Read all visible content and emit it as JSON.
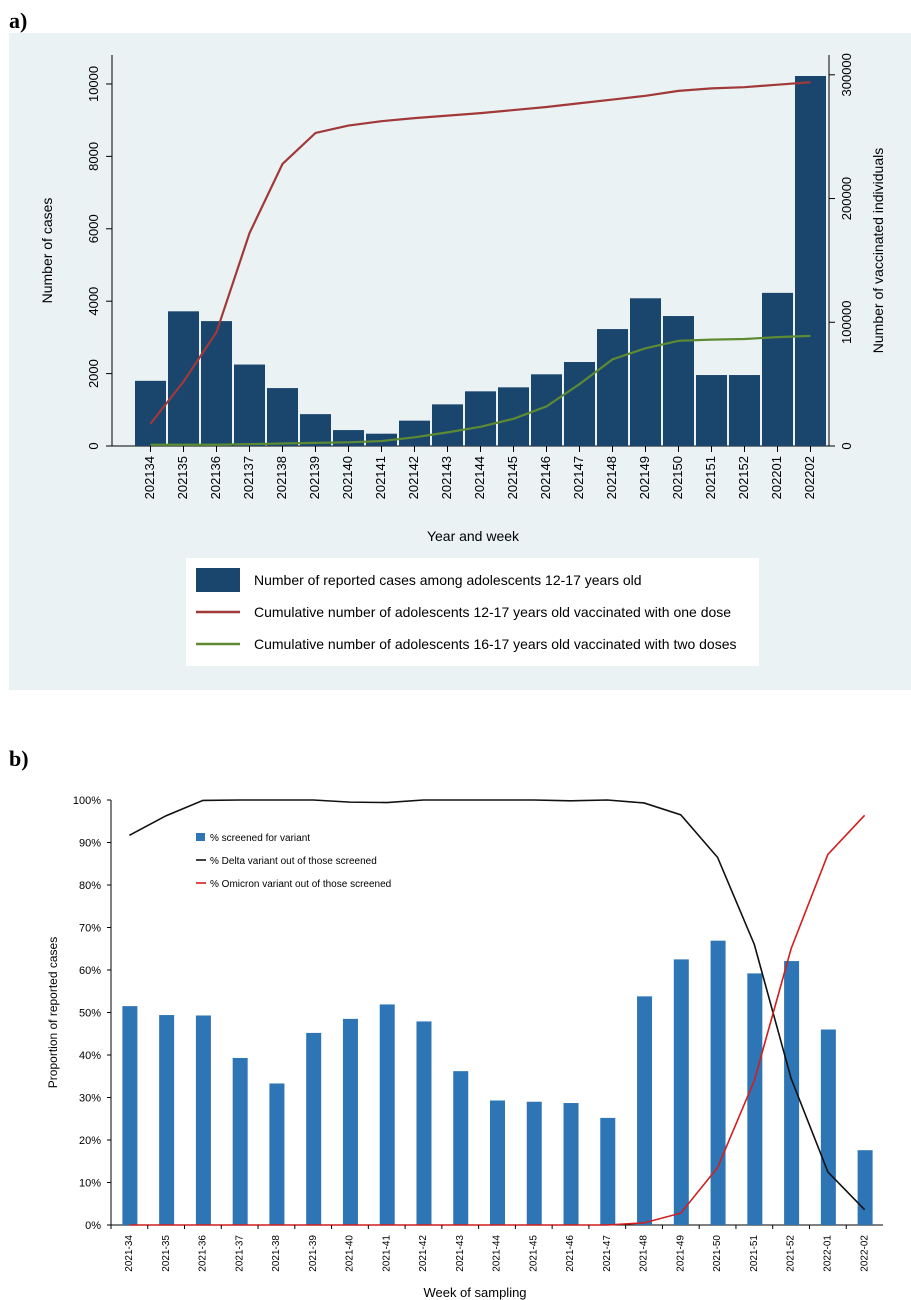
{
  "panel_a": {
    "letter": "a)"
  },
  "panel_b": {
    "letter": "b)"
  },
  "chart_data": [
    {
      "type": "bar",
      "title": "",
      "xlabel": "Year and week",
      "ylabel": "Number of cases",
      "ylabel_right": "Number of vaccinated individuals",
      "categories": [
        "202134",
        "202135",
        "202136",
        "202137",
        "202138",
        "202139",
        "202140",
        "202141",
        "202142",
        "202143",
        "202144",
        "202145",
        "202146",
        "202147",
        "202148",
        "202149",
        "202150",
        "202151",
        "202152",
        "202201",
        "202202"
      ],
      "y_ticks": [
        0,
        2000,
        4000,
        6000,
        8000,
        10000
      ],
      "y_ticks_right": [
        0,
        100000,
        200000,
        300000
      ],
      "ylim": [
        0,
        10800
      ],
      "ylim_right": [
        0,
        316000
      ],
      "grid": false,
      "legend_position": "bottom",
      "series": [
        {
          "name": "Number of reported cases among adolescents 12-17 years old",
          "kind": "bar",
          "axis": "left",
          "color": "#1a466e",
          "values": [
            1800,
            3720,
            3450,
            2250,
            1600,
            880,
            440,
            340,
            700,
            1150,
            1510,
            1620,
            1980,
            2320,
            3230,
            4080,
            3590,
            1960,
            1960,
            4230,
            10220
          ]
        },
        {
          "name": "Cumulative number of adolescents 12-17 years old vaccinated with one dose",
          "kind": "line",
          "axis": "right",
          "color": "#a1383a",
          "values": [
            18000,
            52000,
            92000,
            172000,
            228000,
            253000,
            259000,
            262500,
            265000,
            267000,
            269000,
            271500,
            274000,
            277000,
            280000,
            283000,
            287000,
            289000,
            290000,
            292000,
            294000
          ]
        },
        {
          "name": "Cumulative number of adolescents 16-17 years old vaccinated with two doses",
          "kind": "line",
          "axis": "right",
          "color": "#5d8a32",
          "values": [
            1000,
            1000,
            1000,
            1500,
            2000,
            2500,
            3000,
            4000,
            7000,
            11000,
            15500,
            22000,
            32000,
            50000,
            70000,
            79000,
            85000,
            86000,
            86500,
            88000,
            89000
          ]
        }
      ]
    },
    {
      "type": "bar",
      "title": "",
      "xlabel": "Week of sampling",
      "ylabel": "Proportion of reported cases",
      "categories": [
        "2021-34",
        "2021-35",
        "2021-36",
        "2021-37",
        "2021-38",
        "2021-39",
        "2021-40",
        "2021-41",
        "2021-42",
        "2021-43",
        "2021-44",
        "2021-45",
        "2021-46",
        "2021-47",
        "2021-48",
        "2021-49",
        "2021-50",
        "2021-51",
        "2021-52",
        "2022-01",
        "2022-02"
      ],
      "y_ticks": [
        "0%",
        "10%",
        "20%",
        "30%",
        "40%",
        "50%",
        "60%",
        "70%",
        "80%",
        "90%",
        "100%"
      ],
      "ylim": [
        0,
        100
      ],
      "grid": false,
      "legend_position": "top-left",
      "series": [
        {
          "name": "% screened for variant",
          "kind": "bar",
          "color": "#2e75b6",
          "values": [
            51.5,
            49.4,
            49.3,
            39.3,
            33.3,
            45.2,
            48.5,
            51.9,
            47.9,
            36.2,
            29.3,
            29.0,
            28.7,
            25.2,
            53.8,
            62.5,
            66.9,
            59.2,
            62.1,
            46.0,
            17.6
          ]
        },
        {
          "name": "% Delta variant out of those screened",
          "kind": "line",
          "color": "#111111",
          "values": [
            91.7,
            96.3,
            99.9,
            100,
            100,
            100,
            99.5,
            99.4,
            100,
            100,
            100,
            100,
            99.8,
            100,
            99.3,
            96.5,
            86.5,
            66.0,
            34.5,
            12.5,
            3.6
          ]
        },
        {
          "name": "% Omicron variant out of those screened",
          "kind": "line",
          "color": "#d21e1e",
          "values": [
            0,
            0,
            0,
            0,
            0,
            0,
            0,
            0,
            0,
            0,
            0,
            0,
            0,
            0,
            0.5,
            2.8,
            13.5,
            34.0,
            65.0,
            87.2,
            96.4
          ]
        }
      ]
    }
  ]
}
